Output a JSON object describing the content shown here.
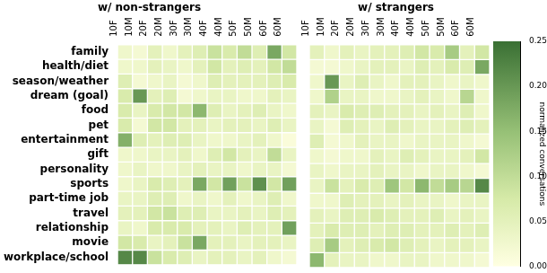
{
  "chart_data": [
    {
      "type": "heatmap",
      "title": "w/ non-strangers",
      "x": [
        "10F",
        "10M",
        "20F",
        "20M",
        "30F",
        "30M",
        "40F",
        "40M",
        "50F",
        "50M",
        "60F",
        "60M"
      ],
      "y": [
        "family",
        "health/diet",
        "season/weather",
        "dream (goal)",
        "food",
        "pet",
        "entertainment",
        "gift",
        "personality",
        "sports",
        "part-time job",
        "travel",
        "relationship",
        "movie",
        "workplace/school"
      ],
      "cells": [
        [
          0.03,
          0.02,
          0.05,
          0.03,
          0.05,
          0.06,
          0.09,
          0.07,
          0.1,
          0.06,
          0.18,
          0.08
        ],
        [
          0.03,
          0.03,
          0.05,
          0.04,
          0.03,
          0.05,
          0.08,
          0.05,
          0.06,
          0.05,
          0.08,
          0.1
        ],
        [
          0.06,
          0.02,
          0.03,
          0.04,
          0.02,
          0.03,
          0.06,
          0.05,
          0.05,
          0.05,
          0.06,
          0.07
        ],
        [
          0.07,
          0.2,
          0.05,
          0.06,
          0.02,
          0.03,
          0.04,
          0.04,
          0.03,
          0.03,
          0.05,
          0.04
        ],
        [
          0.07,
          0.04,
          0.07,
          0.08,
          0.08,
          0.16,
          0.06,
          0.04,
          0.05,
          0.06,
          0.04,
          0.03
        ],
        [
          0.07,
          0.02,
          0.08,
          0.08,
          0.05,
          0.05,
          0.04,
          0.05,
          0.05,
          0.04,
          0.06,
          0.04
        ],
        [
          0.17,
          0.06,
          0.05,
          0.06,
          0.06,
          0.04,
          0.03,
          0.03,
          0.04,
          0.05,
          0.03,
          0.01
        ],
        [
          0.03,
          0.03,
          0.04,
          0.04,
          0.05,
          0.03,
          0.06,
          0.08,
          0.05,
          0.04,
          0.1,
          0.04
        ],
        [
          0.03,
          0.04,
          0.03,
          0.03,
          0.04,
          0.05,
          0.04,
          0.04,
          0.03,
          0.04,
          0.04,
          0.02
        ],
        [
          0.03,
          0.04,
          0.07,
          0.06,
          0.05,
          0.18,
          0.08,
          0.19,
          0.09,
          0.21,
          0.08,
          0.19
        ],
        [
          0.04,
          0.04,
          0.06,
          0.06,
          0.03,
          0.04,
          0.03,
          0.05,
          0.03,
          0.04,
          0.06,
          0.03
        ],
        [
          0.05,
          0.05,
          0.08,
          0.09,
          0.06,
          0.06,
          0.04,
          0.04,
          0.05,
          0.04,
          0.06,
          0.05
        ],
        [
          0.04,
          0.03,
          0.07,
          0.07,
          0.07,
          0.05,
          0.05,
          0.04,
          0.06,
          0.05,
          0.05,
          0.19
        ],
        [
          0.08,
          0.07,
          0.04,
          0.05,
          0.09,
          0.18,
          0.05,
          0.05,
          0.04,
          0.05,
          0.05,
          0.04
        ],
        [
          0.22,
          0.22,
          0.09,
          0.07,
          0.06,
          0.04,
          0.05,
          0.05,
          0.04,
          0.05,
          0.03,
          0.02
        ]
      ]
    },
    {
      "type": "heatmap",
      "title": "w/ strangers",
      "tick_labels": "x",
      "x": [
        "10F",
        "10M",
        "20F",
        "20M",
        "30F",
        "30M",
        "40F",
        "40M",
        "50F",
        "50M",
        "60F",
        "60M"
      ],
      "y": [
        "family",
        "health/diet",
        "season/weather",
        "dream (goal)",
        "food",
        "pet",
        "entertainment",
        "gift",
        "personality",
        "sports",
        "part-time job",
        "travel",
        "relationship",
        "movie",
        "workplace/school"
      ],
      "cells": [
        [
          0.05,
          0.03,
          0.05,
          0.04,
          0.05,
          0.05,
          0.06,
          0.08,
          0.07,
          0.13,
          0.05,
          0.08
        ],
        [
          0.02,
          0.02,
          0.03,
          0.04,
          0.05,
          0.05,
          0.04,
          0.06,
          0.05,
          0.07,
          0.06,
          0.18
        ],
        [
          0.03,
          0.2,
          0.04,
          0.06,
          0.04,
          0.03,
          0.05,
          0.05,
          0.04,
          0.03,
          0.04,
          0.03
        ],
        [
          0.03,
          0.12,
          0.04,
          0.04,
          0.03,
          0.03,
          0.04,
          0.05,
          0.04,
          0.03,
          0.11,
          0.03
        ],
        [
          0.05,
          0.04,
          0.07,
          0.06,
          0.06,
          0.05,
          0.05,
          0.04,
          0.05,
          0.04,
          0.06,
          0.03
        ],
        [
          0.04,
          0.02,
          0.06,
          0.05,
          0.04,
          0.06,
          0.05,
          0.04,
          0.04,
          0.05,
          0.06,
          0.05
        ],
        [
          0.06,
          0.02,
          0.03,
          0.05,
          0.04,
          0.04,
          0.03,
          0.04,
          0.04,
          0.04,
          0.03,
          0.02
        ],
        [
          0.03,
          0.02,
          0.03,
          0.03,
          0.05,
          0.04,
          0.06,
          0.05,
          0.04,
          0.04,
          0.05,
          0.08
        ],
        [
          0.04,
          0.03,
          0.04,
          0.04,
          0.05,
          0.04,
          0.04,
          0.03,
          0.04,
          0.04,
          0.03,
          0.02
        ],
        [
          0.04,
          0.09,
          0.05,
          0.07,
          0.06,
          0.14,
          0.08,
          0.16,
          0.1,
          0.13,
          0.11,
          0.22
        ],
        [
          0.03,
          0.03,
          0.06,
          0.05,
          0.05,
          0.04,
          0.05,
          0.04,
          0.04,
          0.03,
          0.04,
          0.04
        ],
        [
          0.05,
          0.04,
          0.06,
          0.06,
          0.07,
          0.06,
          0.05,
          0.05,
          0.06,
          0.04,
          0.05,
          0.04
        ],
        [
          0.05,
          0.07,
          0.06,
          0.06,
          0.05,
          0.06,
          0.06,
          0.05,
          0.05,
          0.06,
          0.05,
          0.06
        ],
        [
          0.06,
          0.13,
          0.05,
          0.06,
          0.07,
          0.08,
          0.06,
          0.05,
          0.04,
          0.05,
          0.05,
          0.04
        ],
        [
          0.16,
          0.05,
          0.04,
          0.04,
          0.03,
          0.03,
          0.04,
          0.04,
          0.03,
          0.03,
          0.03,
          0.02
        ]
      ],
      "colorbar": {
        "label": "normalized conversations",
        "range": [
          0,
          0.25
        ],
        "ticks": [
          {
            "value": 0,
            "label": "0.00"
          },
          {
            "value": 0.05,
            "label": "0.05"
          },
          {
            "value": 0.1,
            "label": "0.10"
          },
          {
            "value": 0.15,
            "label": "0.15"
          },
          {
            "value": 0.2,
            "label": "0.20"
          },
          {
            "value": 0.25,
            "label": "0.25"
          }
        ]
      }
    }
  ]
}
